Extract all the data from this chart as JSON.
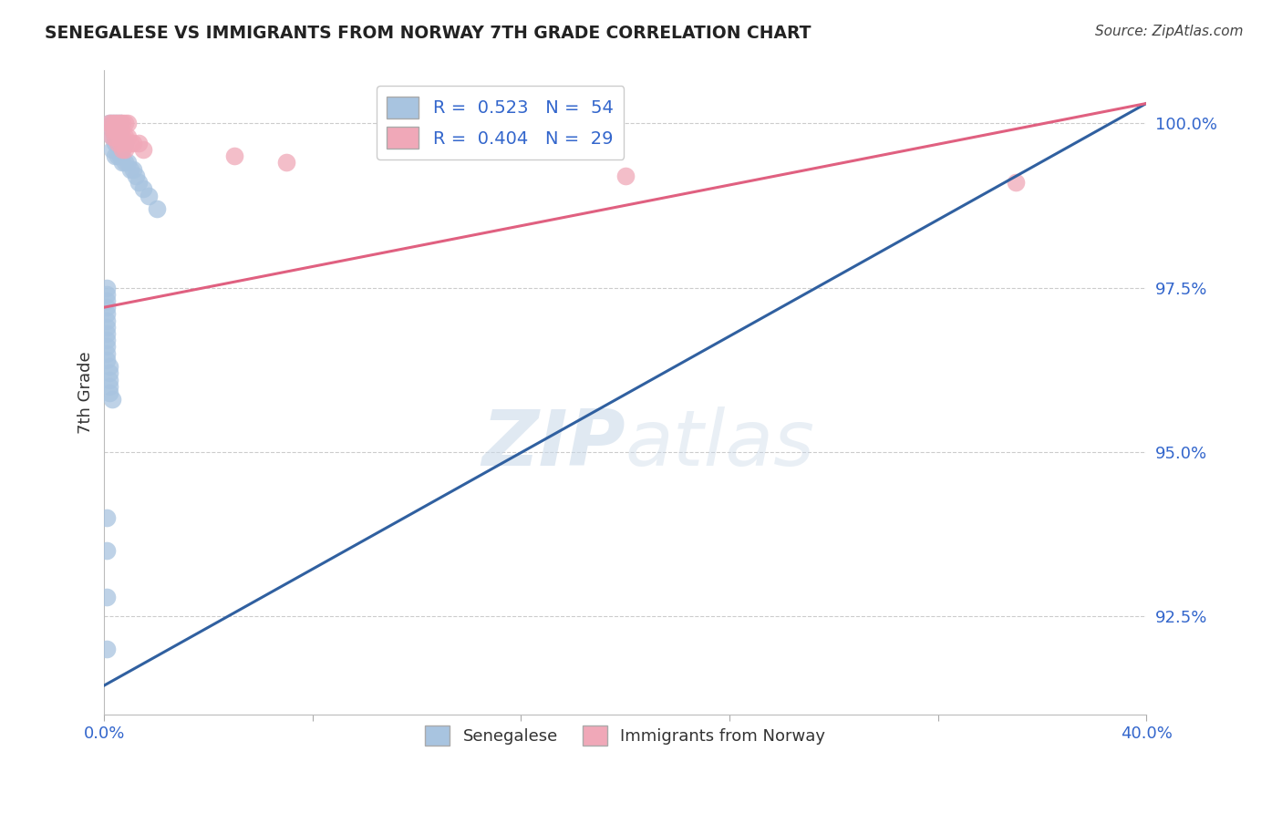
{
  "title": "SENEGALESE VS IMMIGRANTS FROM NORWAY 7TH GRADE CORRELATION CHART",
  "source": "Source: ZipAtlas.com",
  "ylabel": "7th Grade",
  "xlim": [
    0.0,
    0.4
  ],
  "ylim": [
    0.91,
    1.008
  ],
  "xticks": [
    0.0,
    0.08,
    0.16,
    0.24,
    0.32,
    0.4
  ],
  "xtick_labels": [
    "0.0%",
    "",
    "",
    "",
    "",
    "40.0%"
  ],
  "ytick_labels": [
    "92.5%",
    "95.0%",
    "97.5%",
    "100.0%"
  ],
  "yticks": [
    0.925,
    0.95,
    0.975,
    1.0
  ],
  "blue_r": "0.523",
  "blue_n": "54",
  "pink_r": "0.404",
  "pink_n": "29",
  "blue_color": "#a8c4e0",
  "pink_color": "#f0a8b8",
  "blue_line_color": "#3060a0",
  "pink_line_color": "#e06080",
  "legend_label_blue": "Senegalese",
  "legend_label_pink": "Immigrants from Norway",
  "blue_line_x": [
    0.0,
    0.4
  ],
  "blue_line_y": [
    0.9145,
    1.003
  ],
  "pink_line_x": [
    0.0,
    0.4
  ],
  "pink_line_y": [
    0.972,
    1.003
  ],
  "blue_x": [
    0.002,
    0.003,
    0.004,
    0.005,
    0.006,
    0.003,
    0.004,
    0.005,
    0.003,
    0.004,
    0.005,
    0.006,
    0.007,
    0.008,
    0.004,
    0.005,
    0.006,
    0.007,
    0.003,
    0.004,
    0.005,
    0.006,
    0.007,
    0.008,
    0.009,
    0.01,
    0.011,
    0.012,
    0.013,
    0.015,
    0.017,
    0.02,
    0.001,
    0.001,
    0.001,
    0.001,
    0.001,
    0.001,
    0.001,
    0.001,
    0.001,
    0.001,
    0.001,
    0.001,
    0.002,
    0.002,
    0.002,
    0.002,
    0.002,
    0.003,
    0.001,
    0.001,
    0.001,
    0.001
  ],
  "blue_y": [
    1.0,
    1.0,
    1.0,
    1.0,
    1.0,
    0.999,
    0.999,
    0.999,
    0.998,
    0.998,
    0.998,
    0.998,
    0.997,
    0.997,
    0.997,
    0.997,
    0.996,
    0.996,
    0.996,
    0.995,
    0.995,
    0.995,
    0.994,
    0.994,
    0.994,
    0.993,
    0.993,
    0.992,
    0.991,
    0.99,
    0.989,
    0.987,
    0.975,
    0.974,
    0.973,
    0.972,
    0.971,
    0.97,
    0.969,
    0.968,
    0.967,
    0.966,
    0.965,
    0.964,
    0.963,
    0.962,
    0.961,
    0.96,
    0.959,
    0.958,
    0.94,
    0.935,
    0.928,
    0.92
  ],
  "pink_x": [
    0.002,
    0.003,
    0.004,
    0.005,
    0.006,
    0.007,
    0.008,
    0.009,
    0.003,
    0.004,
    0.005,
    0.006,
    0.007,
    0.008,
    0.009,
    0.01,
    0.011,
    0.013,
    0.015,
    0.05,
    0.07,
    0.2,
    0.35,
    0.003,
    0.004,
    0.005,
    0.006,
    0.007,
    0.008
  ],
  "pink_y": [
    1.0,
    1.0,
    1.0,
    1.0,
    1.0,
    1.0,
    1.0,
    1.0,
    0.999,
    0.999,
    0.999,
    0.999,
    0.998,
    0.998,
    0.998,
    0.997,
    0.997,
    0.997,
    0.996,
    0.995,
    0.994,
    0.992,
    0.991,
    0.998,
    0.998,
    0.997,
    0.997,
    0.996,
    0.996
  ]
}
